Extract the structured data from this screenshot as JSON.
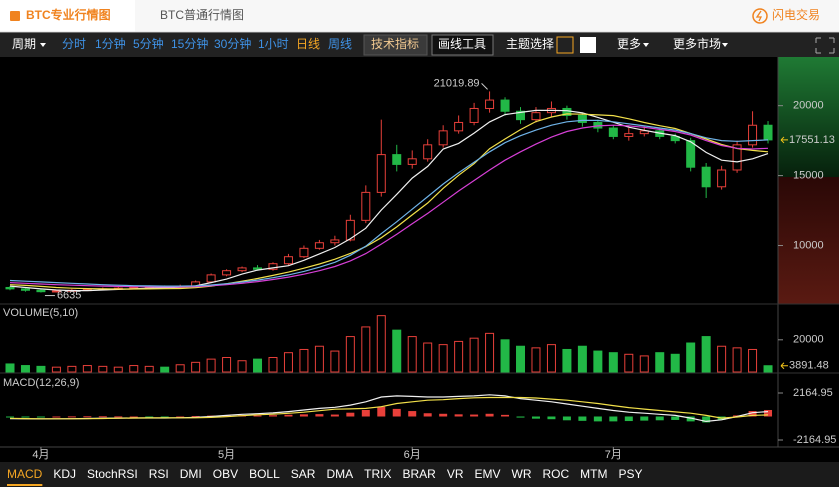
{
  "tabs": [
    "BTC专业行情图",
    "BTC普通行情图"
  ],
  "trade": "闪电交易",
  "toolbar": {
    "period": "周期",
    "intervals": [
      "分时",
      "1分钟",
      "5分钟",
      "15分钟",
      "30分钟",
      "1小时",
      "日线",
      "周线"
    ],
    "indicator_button": "技术指标",
    "draw_button": "画线工具",
    "theme": "主题选择",
    "more": "更多",
    "more_markets": "更多市场"
  },
  "chart_data": [
    {
      "type": "candlestick",
      "categories": [
        null,
        null,
        "4月",
        null,
        null,
        null,
        null,
        null,
        null,
        null,
        null,
        null,
        null,
        null,
        "5月",
        null,
        null,
        null,
        null,
        null,
        null,
        null,
        null,
        null,
        null,
        null,
        "6月",
        null,
        null,
        null,
        null,
        null,
        null,
        null,
        null,
        null,
        null,
        null,
        null,
        "7月",
        null,
        null,
        null,
        null,
        null,
        null,
        null,
        null,
        null,
        null
      ],
      "open": [
        7000,
        6900,
        6800,
        6700,
        6750,
        6800,
        6850,
        6900,
        6950,
        7000,
        7050,
        7000,
        7100,
        7400,
        7900,
        8200,
        8400,
        8300,
        8700,
        9200,
        9800,
        10200,
        10400,
        11800,
        13800,
        16500,
        15800,
        16200,
        17200,
        18200,
        18800,
        19800,
        20400,
        19600,
        19000,
        19500,
        19800,
        19300,
        18800,
        18400,
        17800,
        18000,
        18200,
        17800,
        17500,
        15600,
        14200,
        15400,
        17200,
        18600
      ],
      "high": [
        7100,
        7000,
        6900,
        6850,
        6900,
        6950,
        7000,
        7050,
        7100,
        7150,
        7150,
        7200,
        7500,
        8000,
        8300,
        8500,
        8600,
        8800,
        9400,
        10000,
        10400,
        10700,
        12200,
        14300,
        19000,
        17200,
        16800,
        17600,
        18600,
        19300,
        20200,
        21019.89,
        20600,
        19900,
        19900,
        20300,
        20000,
        19500,
        19000,
        18600,
        18400,
        18500,
        18400,
        18000,
        17700,
        15900,
        15700,
        17500,
        19600,
        18900
      ],
      "low": [
        6800,
        6700,
        6635,
        6650,
        6700,
        6750,
        6800,
        6850,
        6900,
        6950,
        6950,
        6950,
        7050,
        7350,
        7800,
        8100,
        8200,
        8200,
        8600,
        9100,
        9700,
        10000,
        10300,
        11600,
        13500,
        15300,
        15500,
        16000,
        17000,
        18000,
        18600,
        19500,
        19300,
        18700,
        18800,
        19200,
        19000,
        18500,
        18100,
        17600,
        17500,
        17800,
        17600,
        17300,
        15300,
        13400,
        14000,
        15200,
        17000,
        17300
      ],
      "close": [
        6900,
        6800,
        6700,
        6750,
        6800,
        6850,
        6900,
        6950,
        7000,
        7050,
        7000,
        7100,
        7400,
        7900,
        8200,
        8400,
        8300,
        8700,
        9200,
        9800,
        10200,
        10400,
        11800,
        13800,
        16500,
        15800,
        16200,
        17200,
        18200,
        18800,
        19800,
        20400,
        19600,
        19000,
        19500,
        19800,
        19300,
        18800,
        18400,
        17800,
        18000,
        18200,
        17800,
        17500,
        15600,
        14200,
        15400,
        17200,
        18600,
        17551.13
      ],
      "series": [
        {
          "color": "#f0f0f0",
          "values": [
            7100,
            7000,
            6900,
            6820,
            6780,
            6780,
            6820,
            6860,
            6900,
            6950,
            6980,
            7020,
            7120,
            7350,
            7600,
            7960,
            8240,
            8400,
            8560,
            8940,
            9400,
            9860,
            10480,
            11240,
            12540,
            13660,
            14820,
            15660,
            16900,
            17300,
            18040,
            18840,
            19360,
            19520,
            19660,
            19660,
            19640,
            19480,
            19160,
            18820,
            18460,
            18240,
            18040,
            17860,
            17420,
            16660,
            16100,
            15980,
            16200,
            16570
          ]
        },
        {
          "color": "#f2e04a",
          "values": [
            7200,
            7150,
            7080,
            7000,
            6950,
            6920,
            6900,
            6890,
            6890,
            6900,
            6910,
            6930,
            6990,
            7100,
            7270,
            7450,
            7640,
            7860,
            8100,
            8380,
            8680,
            9020,
            9430,
            9920,
            10560,
            11330,
            12190,
            13040,
            14090,
            15020,
            15850,
            16920,
            17620,
            18290,
            18870,
            19190,
            19410,
            19390,
            19340,
            19290,
            19060,
            18800,
            18570,
            18370,
            18000,
            17620,
            17220,
            16940,
            16800,
            16700
          ]
        },
        {
          "color": "#d63fd6",
          "values": [
            7350,
            7300,
            7250,
            7200,
            7160,
            7130,
            7100,
            7080,
            7060,
            7050,
            7040,
            7040,
            7060,
            7120,
            7200,
            7300,
            7420,
            7570,
            7740,
            7950,
            8200,
            8500,
            8900,
            9420,
            10100,
            10800,
            11550,
            12300,
            13100,
            13900,
            14650,
            15400,
            16100,
            16700,
            17250,
            17750,
            18150,
            18400,
            18550,
            18600,
            18550,
            18450,
            18300,
            18150,
            17900,
            17500,
            17150,
            16950,
            16900,
            16950
          ]
        },
        {
          "color": "#6fb3e8",
          "values": [
            7500,
            7450,
            7400,
            7350,
            7300,
            7250,
            7200,
            7160,
            7130,
            7110,
            7100,
            7100,
            7120,
            7180,
            7270,
            7390,
            7530,
            7700,
            7900,
            8150,
            8450,
            8800,
            9300,
            9950,
            10850,
            11700,
            12600,
            13500,
            14400,
            15200,
            15950,
            16700,
            17350,
            17850,
            18250,
            18600,
            18850,
            18950,
            18950,
            18850,
            18700,
            18550,
            18400,
            18250,
            18000,
            17700,
            17500,
            17450,
            17500,
            17550
          ]
        }
      ],
      "colors": {
        "up": "#e8403a",
        "down": "#22b847"
      },
      "ylim": [
        5890,
        23480
      ],
      "yticks": [
        10000,
        15000,
        20000
      ]
    },
    {
      "type": "bar",
      "title": "VOLUME(5,10)",
      "values": [
        5000,
        4000,
        3500,
        3000,
        3500,
        4000,
        3500,
        3000,
        4000,
        3500,
        3000,
        4500,
        6000,
        8000,
        9000,
        7000,
        8000,
        9000,
        12000,
        14000,
        16000,
        13000,
        22000,
        28000,
        35000,
        26000,
        22000,
        18000,
        17000,
        19000,
        21000,
        24000,
        20000,
        16000,
        15000,
        17000,
        14000,
        16000,
        13000,
        12000,
        11000,
        10000,
        12000,
        11000,
        18000,
        22000,
        16000,
        15000,
        14000,
        3891.48
      ],
      "ylim": [
        0,
        41000
      ],
      "yticks": [
        20000
      ]
    },
    {
      "type": "macd",
      "title": "MACD(12,26,9)",
      "values": [
        -30,
        -20,
        -10,
        0,
        10,
        20,
        20,
        10,
        0,
        -10,
        -20,
        0,
        40,
        80,
        120,
        130,
        100,
        120,
        160,
        200,
        220,
        180,
        350,
        600,
        900,
        700,
        500,
        300,
        250,
        200,
        180,
        250,
        150,
        -100,
        -200,
        -250,
        -350,
        -400,
        -450,
        -450,
        -420,
        -380,
        -350,
        -320,
        -450,
        -550,
        -300,
        100,
        500,
        600
      ],
      "series": [
        {
          "color": "#f0f0f0",
          "values": [
            -200,
            -210,
            -220,
            -210,
            -200,
            -180,
            -160,
            -150,
            -140,
            -140,
            -140,
            -120,
            -80,
            0,
            100,
            200,
            260,
            330,
            450,
            600,
            750,
            850,
            1050,
            1350,
            1800,
            1900,
            1850,
            1800,
            1800,
            1850,
            1900,
            2000,
            1900,
            1650,
            1500,
            1350,
            1150,
            950,
            750,
            550,
            400,
            300,
            200,
            100,
            -150,
            -450,
            -300,
            0,
            350,
            450
          ]
        },
        {
          "color": "#f2e04a",
          "values": [
            -170,
            -190,
            -210,
            -210,
            -210,
            -200,
            -180,
            -160,
            -140,
            -130,
            -120,
            -120,
            -120,
            -80,
            -20,
            70,
            160,
            210,
            290,
            400,
            530,
            670,
            700,
            750,
            900,
            1200,
            1350,
            1500,
            1550,
            1650,
            1720,
            1750,
            1750,
            1750,
            1700,
            1600,
            1500,
            1350,
            1200,
            1000,
            820,
            680,
            550,
            420,
            300,
            100,
            -150,
            -50,
            100,
            150
          ]
        }
      ],
      "ylim": [
        -2626,
        3639
      ],
      "yticks": [
        2164.95,
        -2164.95
      ]
    }
  ],
  "indicators": [
    "MACD",
    "KDJ",
    "StochRSI",
    "RSI",
    "DMI",
    "OBV",
    "BOLL",
    "SAR",
    "DMA",
    "TRIX",
    "BRAR",
    "VR",
    "EMV",
    "WR",
    "ROC",
    "MTM",
    "PSY"
  ]
}
